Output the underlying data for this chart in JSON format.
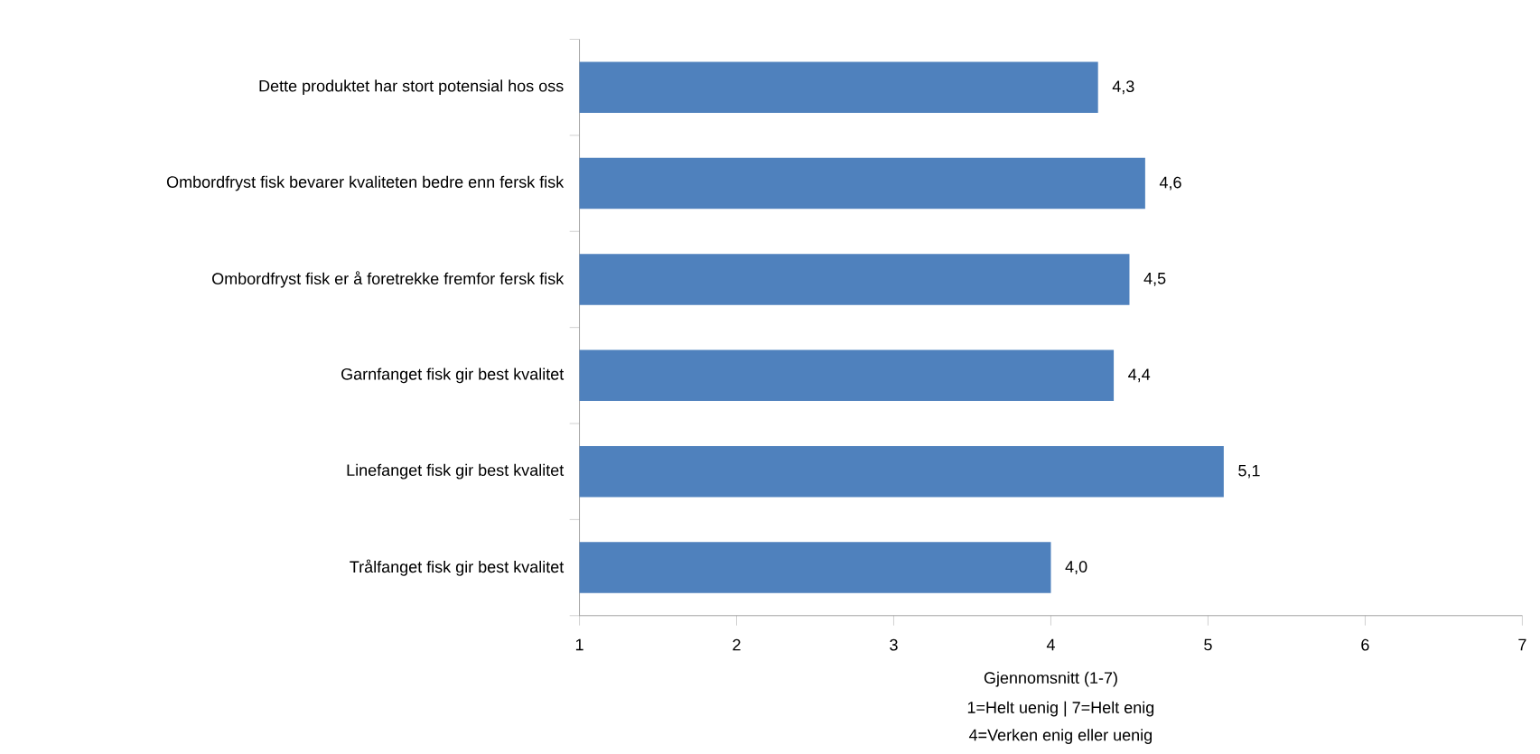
{
  "chart_data": {
    "type": "bar",
    "orientation": "horizontal",
    "categories": [
      "Dette produktet har stort potensial hos oss",
      "Ombordfryst fisk bevarer kvaliteten bedre enn fersk fisk",
      "Ombordfryst fisk er å foretrekke fremfor fersk fisk",
      "Garnfanget fisk gir best kvalitet",
      "Linefanget fisk gir best kvalitet",
      "Trålfanget fisk gir best kvalitet"
    ],
    "values": [
      4.3,
      4.6,
      4.5,
      4.4,
      5.1,
      4.0
    ],
    "value_labels": [
      "4,3",
      "4,6",
      "4,5",
      "4,4",
      "5,1",
      "4,0"
    ],
    "color": "#4f81bd",
    "xlim": [
      1,
      7
    ],
    "xticks": [
      1,
      2,
      3,
      4,
      5,
      6,
      7
    ],
    "xlabel": "Gjennomsnitt (1-7)",
    "annotations": [
      "1=Helt uenig | 7=Helt enig",
      "4=Verken enig eller uenig"
    ],
    "grid": false
  }
}
